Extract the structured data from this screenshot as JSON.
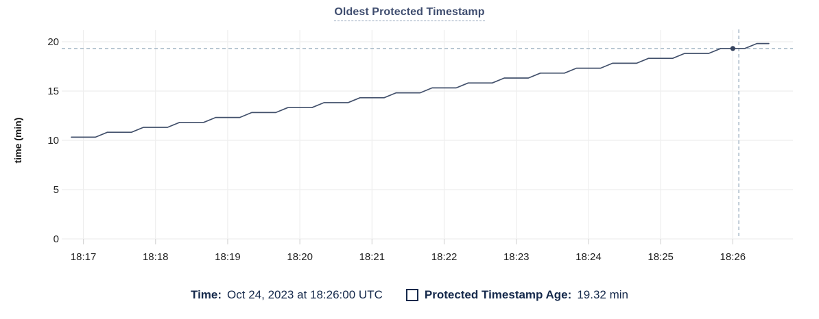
{
  "title": "Oldest Protected Timestamp",
  "legend": {
    "time_label": "Time:",
    "time_value": "Oct 24, 2023 at 18:26:00 UTC",
    "series_label": "Protected Timestamp Age:",
    "series_value": "19.32 min"
  },
  "colors": {
    "line": "#42506b",
    "dot": "#35425e",
    "navy_text": "#15294b",
    "title_text": "#3e4c6e",
    "crosshair": "#a3b5c4",
    "gridline": "#eeeeee",
    "tick_mark": "#d6d6d6",
    "axis_text": "#222222"
  },
  "chart_data": {
    "type": "line",
    "title": "Oldest Protected Timestamp",
    "xlabel": "",
    "ylabel": "time (min)",
    "ylim": [
      0,
      20
    ],
    "y_ticks": [
      0,
      5,
      10,
      15,
      20
    ],
    "x_domain": [
      "18:16:42",
      "18:26:50"
    ],
    "x_ticks": [
      "18:17",
      "18:18",
      "18:19",
      "18:20",
      "18:21",
      "18:22",
      "18:23",
      "18:24",
      "18:25",
      "18:26"
    ],
    "grid": true,
    "legend_position": "bottom",
    "crosshair": {
      "time": "18:26:00",
      "hover_time": "18:26:05",
      "value": 19.32
    },
    "series": [
      {
        "name": "Protected Timestamp Age",
        "unit": "min",
        "points": [
          [
            "18:16:50",
            10.32
          ],
          [
            "18:17:00",
            10.32
          ],
          [
            "18:17:10",
            10.32
          ],
          [
            "18:17:20",
            10.82
          ],
          [
            "18:17:30",
            10.82
          ],
          [
            "18:17:40",
            10.82
          ],
          [
            "18:17:50",
            11.32
          ],
          [
            "18:18:00",
            11.32
          ],
          [
            "18:18:10",
            11.32
          ],
          [
            "18:18:20",
            11.82
          ],
          [
            "18:18:30",
            11.82
          ],
          [
            "18:18:40",
            11.82
          ],
          [
            "18:18:50",
            12.32
          ],
          [
            "18:19:00",
            12.32
          ],
          [
            "18:19:10",
            12.32
          ],
          [
            "18:19:20",
            12.82
          ],
          [
            "18:19:30",
            12.82
          ],
          [
            "18:19:40",
            12.82
          ],
          [
            "18:19:50",
            13.32
          ],
          [
            "18:20:00",
            13.32
          ],
          [
            "18:20:10",
            13.32
          ],
          [
            "18:20:20",
            13.82
          ],
          [
            "18:20:30",
            13.82
          ],
          [
            "18:20:40",
            13.82
          ],
          [
            "18:20:50",
            14.32
          ],
          [
            "18:21:00",
            14.32
          ],
          [
            "18:21:10",
            14.32
          ],
          [
            "18:21:20",
            14.82
          ],
          [
            "18:21:30",
            14.82
          ],
          [
            "18:21:40",
            14.82
          ],
          [
            "18:21:50",
            15.32
          ],
          [
            "18:22:00",
            15.32
          ],
          [
            "18:22:10",
            15.32
          ],
          [
            "18:22:20",
            15.82
          ],
          [
            "18:22:30",
            15.82
          ],
          [
            "18:22:40",
            15.82
          ],
          [
            "18:22:50",
            16.32
          ],
          [
            "18:23:00",
            16.32
          ],
          [
            "18:23:10",
            16.32
          ],
          [
            "18:23:20",
            16.82
          ],
          [
            "18:23:30",
            16.82
          ],
          [
            "18:23:40",
            16.82
          ],
          [
            "18:23:50",
            17.32
          ],
          [
            "18:24:00",
            17.32
          ],
          [
            "18:24:10",
            17.32
          ],
          [
            "18:24:20",
            17.82
          ],
          [
            "18:24:30",
            17.82
          ],
          [
            "18:24:40",
            17.82
          ],
          [
            "18:24:50",
            18.32
          ],
          [
            "18:25:00",
            18.32
          ],
          [
            "18:25:10",
            18.32
          ],
          [
            "18:25:20",
            18.82
          ],
          [
            "18:25:30",
            18.82
          ],
          [
            "18:25:40",
            18.82
          ],
          [
            "18:25:50",
            19.32
          ],
          [
            "18:26:00",
            19.32
          ],
          [
            "18:26:10",
            19.32
          ],
          [
            "18:26:20",
            19.82
          ],
          [
            "18:26:30",
            19.82
          ]
        ]
      }
    ]
  }
}
